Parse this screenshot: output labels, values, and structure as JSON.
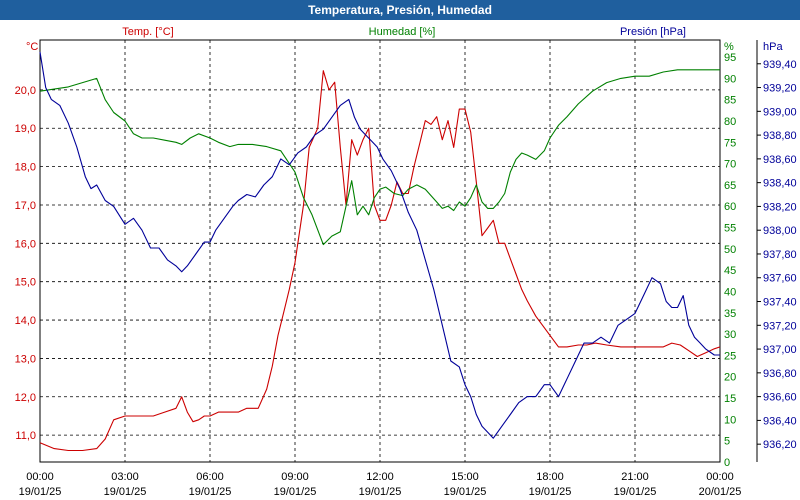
{
  "title": "Temperatura, Presión, Humedad",
  "chart_data": {
    "type": "line",
    "title": "Temperatura, Presión, Humedad",
    "grid": true,
    "x_axis": {
      "ticks": [
        "00:00",
        "03:00",
        "06:00",
        "09:00",
        "12:00",
        "15:00",
        "18:00",
        "21:00",
        "00:00"
      ],
      "dates": [
        "19/01/25",
        "19/01/25",
        "19/01/25",
        "19/01/25",
        "19/01/25",
        "19/01/25",
        "19/01/25",
        "19/01/25",
        "20/01/25"
      ],
      "range": [
        "19/01/25 00:00",
        "20/01/25 00:00"
      ]
    },
    "axes": {
      "temp": {
        "label": "Temp. [°C]",
        "unit": "°C",
        "side": "left",
        "ylim": [
          10.3,
          21.3
        ],
        "ticks": [
          "11,0",
          "12,0",
          "13,0",
          "14,0",
          "15,0",
          "16,0",
          "17,0",
          "18,0",
          "19,0",
          "20,0"
        ],
        "color": "#cc0000"
      },
      "hum": {
        "label": "Humedad [%]",
        "unit": "%",
        "side": "right",
        "ylim": [
          0,
          99
        ],
        "ticks": [
          "0",
          "5",
          "10",
          "15",
          "20",
          "25",
          "30",
          "35",
          "40",
          "45",
          "50",
          "55",
          "60",
          "65",
          "70",
          "75",
          "80",
          "85",
          "90",
          "95"
        ],
        "color": "#008000"
      },
      "pres": {
        "label": "Presión [hPa]",
        "unit": "hPa",
        "side": "right",
        "ylim": [
          936.05,
          939.6
        ],
        "ticks": [
          "936,20",
          "936,40",
          "936,60",
          "936,80",
          "937,00",
          "937,20",
          "937,40",
          "937,60",
          "937,80",
          "938,00",
          "938,20",
          "938,40",
          "938,60",
          "938,80",
          "939,00",
          "939,20",
          "939,40"
        ],
        "color": "#000099"
      }
    },
    "series": [
      {
        "name": "Temp. [°C]",
        "axis": "temp",
        "color": "#cc0000",
        "x": [
          0,
          0.5,
          1,
          1.5,
          2,
          2.3,
          2.6,
          3,
          3.3,
          3.6,
          4,
          4.4,
          4.8,
          5,
          5.2,
          5.4,
          5.6,
          5.8,
          6,
          6.3,
          6.7,
          7,
          7.3,
          7.7,
          8,
          8.2,
          8.4,
          8.6,
          8.8,
          9,
          9.3,
          9.5,
          9.8,
          10,
          10.2,
          10.4,
          10.6,
          10.8,
          11,
          11.2,
          11.4,
          11.6,
          11.8,
          12,
          12.2,
          12.4,
          12.6,
          12.8,
          13,
          13.2,
          13.4,
          13.6,
          13.8,
          14,
          14.2,
          14.4,
          14.6,
          14.8,
          15,
          15.2,
          15.4,
          15.6,
          15.8,
          16,
          16.2,
          16.4,
          16.6,
          16.8,
          17,
          17.2,
          17.5,
          17.8,
          18,
          18.3,
          18.6,
          19,
          19.3,
          19.6,
          20,
          20.5,
          21,
          21.5,
          22,
          22.3,
          22.6,
          22.9,
          23.2,
          23.5,
          23.8,
          24
        ],
        "values": [
          10.8,
          10.65,
          10.6,
          10.6,
          10.65,
          10.9,
          11.4,
          11.5,
          11.5,
          11.5,
          11.5,
          11.6,
          11.7,
          12.0,
          11.6,
          11.35,
          11.4,
          11.5,
          11.5,
          11.6,
          11.6,
          11.6,
          11.7,
          11.7,
          12.2,
          12.8,
          13.6,
          14.2,
          14.8,
          15.5,
          17.0,
          18.5,
          19.0,
          20.5,
          20.0,
          20.2,
          18.5,
          17.0,
          18.7,
          18.3,
          18.7,
          19.0,
          17.0,
          16.6,
          16.6,
          17.0,
          17.6,
          17.3,
          17.3,
          18.0,
          18.6,
          19.2,
          19.1,
          19.3,
          18.7,
          19.2,
          18.5,
          19.5,
          19.5,
          18.9,
          17.6,
          16.2,
          16.4,
          16.6,
          16.0,
          16.0,
          15.6,
          15.2,
          14.8,
          14.5,
          14.1,
          13.8,
          13.6,
          13.3,
          13.3,
          13.35,
          13.35,
          13.4,
          13.35,
          13.3,
          13.3,
          13.3,
          13.3,
          13.4,
          13.35,
          13.2,
          13.05,
          13.15,
          13.25,
          13.3
        ]
      },
      {
        "name": "Humedad [%]",
        "axis": "hum",
        "color": "#008000",
        "x": [
          0,
          1,
          2,
          2.3,
          2.6,
          3,
          3.3,
          3.6,
          4,
          4.4,
          4.8,
          5,
          5.3,
          5.6,
          6,
          6.3,
          6.7,
          7,
          7.5,
          8,
          8.5,
          9,
          9.3,
          9.6,
          10,
          10.3,
          10.6,
          10.8,
          11,
          11.2,
          11.4,
          11.6,
          11.8,
          12,
          12.2,
          12.5,
          12.8,
          13,
          13.3,
          13.6,
          14,
          14.2,
          14.4,
          14.6,
          14.8,
          15,
          15.2,
          15.4,
          15.6,
          15.8,
          16,
          16.2,
          16.4,
          16.6,
          16.8,
          17,
          17.2,
          17.5,
          17.8,
          18,
          18.3,
          18.6,
          19,
          19.5,
          20,
          20.5,
          21,
          21.5,
          22,
          22.5,
          23,
          23.5,
          24
        ],
        "values": [
          87,
          88,
          90,
          85,
          82,
          80,
          77,
          76,
          76,
          75.5,
          75,
          74.5,
          76,
          77,
          76,
          75,
          74,
          74.5,
          74.5,
          74,
          73,
          68,
          62,
          58,
          51,
          53,
          54,
          60,
          66,
          58,
          60,
          58,
          62,
          64,
          64.5,
          63,
          62.5,
          64,
          65,
          64,
          61,
          59.5,
          60,
          59,
          61,
          60,
          62,
          65,
          61,
          59.5,
          59.5,
          61,
          63,
          68,
          71,
          72.5,
          72,
          71,
          73,
          76,
          79,
          81,
          84,
          87,
          89,
          90,
          90.5,
          90.5,
          91.5,
          92,
          92,
          92,
          92
        ]
      },
      {
        "name": "Presión [hPa]",
        "axis": "pres",
        "color": "#000099",
        "x": [
          0,
          0.2,
          0.4,
          0.7,
          1,
          1.3,
          1.6,
          1.8,
          2,
          2.3,
          2.6,
          3,
          3.3,
          3.6,
          3.9,
          4.2,
          4.5,
          4.8,
          5,
          5.2,
          5.5,
          5.8,
          6,
          6.2,
          6.5,
          6.8,
          7,
          7.3,
          7.6,
          7.9,
          8.2,
          8.5,
          8.8,
          9.1,
          9.4,
          9.7,
          10,
          10.3,
          10.6,
          10.9,
          11.1,
          11.3,
          11.5,
          11.7,
          11.9,
          12.1,
          12.4,
          12.7,
          13,
          13.3,
          13.6,
          13.9,
          14.2,
          14.5,
          14.8,
          15,
          15.2,
          15.4,
          15.6,
          15.8,
          16,
          16.3,
          16.6,
          16.9,
          17.2,
          17.5,
          17.8,
          18,
          18.3,
          18.6,
          18.9,
          19.2,
          19.5,
          19.8,
          20.1,
          20.4,
          20.7,
          21,
          21.3,
          21.6,
          21.9,
          22.1,
          22.3,
          22.5,
          22.7,
          22.9,
          23.1,
          23.3,
          23.5,
          23.8,
          24
        ],
        "values": [
          939.5,
          939.2,
          939.1,
          939.05,
          938.9,
          938.7,
          938.45,
          938.35,
          938.38,
          938.25,
          938.2,
          938.05,
          938.1,
          938,
          937.85,
          937.85,
          937.75,
          937.7,
          937.65,
          937.7,
          937.8,
          937.9,
          937.9,
          938,
          938.1,
          938.2,
          938.25,
          938.3,
          938.28,
          938.38,
          938.45,
          938.6,
          938.55,
          938.65,
          938.7,
          938.8,
          938.85,
          938.95,
          939.05,
          939.1,
          938.95,
          938.85,
          938.8,
          938.75,
          938.7,
          938.6,
          938.5,
          938.35,
          938.15,
          938,
          937.75,
          937.5,
          937.2,
          936.9,
          936.85,
          936.7,
          936.6,
          936.45,
          936.35,
          936.3,
          936.25,
          936.35,
          936.45,
          936.55,
          936.6,
          936.6,
          936.7,
          936.7,
          936.6,
          936.75,
          936.9,
          937.05,
          937.05,
          937.1,
          937.05,
          937.2,
          937.25,
          937.3,
          937.45,
          937.6,
          937.55,
          937.4,
          937.35,
          937.35,
          937.45,
          937.2,
          937.1,
          937.05,
          937,
          936.95,
          936.95
        ]
      }
    ]
  }
}
